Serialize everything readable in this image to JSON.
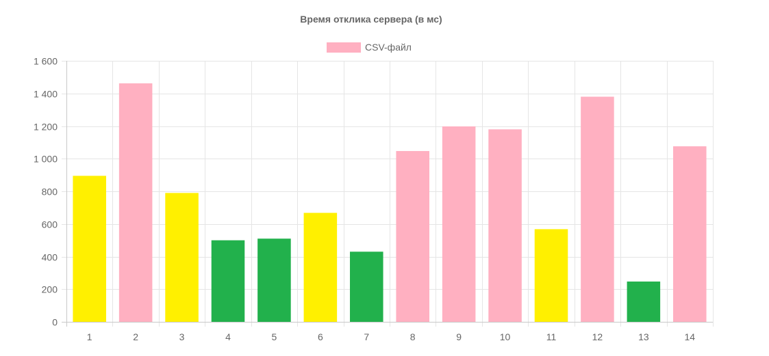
{
  "chart_data": {
    "type": "bar",
    "title": "Время отклика сервера (в мс)",
    "xlabel": "",
    "ylabel": "",
    "ylim": [
      0,
      1600
    ],
    "yticks": [
      0,
      200,
      400,
      600,
      800,
      1000,
      1200,
      1400,
      1600
    ],
    "ytick_labels": [
      "0",
      "200",
      "400",
      "600",
      "800",
      "1 000",
      "1 200",
      "1 400",
      "1 600"
    ],
    "categories": [
      "1",
      "2",
      "3",
      "4",
      "5",
      "6",
      "7",
      "8",
      "9",
      "10",
      "11",
      "12",
      "13",
      "14"
    ],
    "series": [
      {
        "name": "CSV-файл",
        "values": [
          895,
          1462,
          790,
          500,
          510,
          668,
          430,
          1047,
          1198,
          1180,
          568,
          1380,
          247,
          1076
        ],
        "colors": [
          "#fff000",
          "#ffb0c1",
          "#fff000",
          "#22b14c",
          "#22b14c",
          "#fff000",
          "#22b14c",
          "#ffb0c1",
          "#ffb0c1",
          "#ffb0c1",
          "#fff000",
          "#ffb0c1",
          "#22b14c",
          "#ffb0c1"
        ]
      }
    ],
    "grid": true,
    "legend_position": "top-center",
    "legend_color": "#ffb0c1",
    "text_color": "#666666",
    "grid_color": "#e5e5e5"
  }
}
